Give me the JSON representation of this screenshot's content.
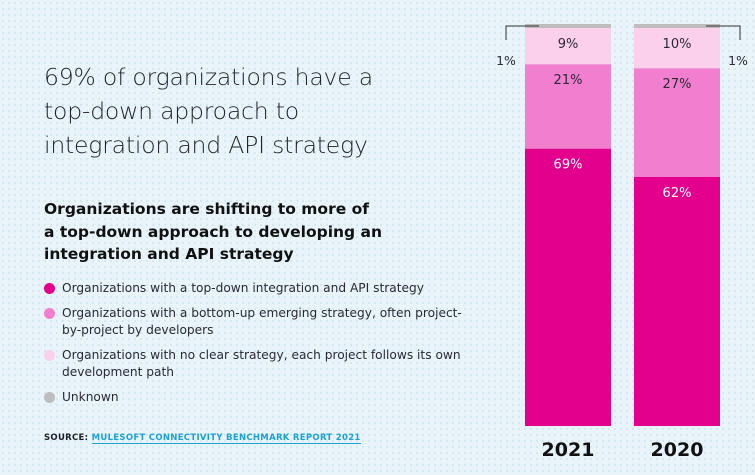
{
  "headline": "69% of organizations have a top-down approach to integration and API strategy",
  "subhead": "Organizations are shifting to more of a top-down approach to developing an integration and API strategy",
  "source": {
    "prefix": "SOURCE: ",
    "text": "MULESOFT CONNECTIVITY BENCHMARK REPORT 2021"
  },
  "colors": {
    "top_down": "#e3008c",
    "bottom_up": "#f27ecf",
    "no_strategy": "#fbd0ec",
    "unknown": "#bdbdbd"
  },
  "chart_data": {
    "type": "bar",
    "stacked": true,
    "categories": [
      "2021",
      "2020"
    ],
    "series": [
      {
        "name": "Organizations with a top-down integration and API strategy",
        "values": [
          69,
          62
        ],
        "labels": [
          "69%",
          "62%"
        ],
        "color_key": "top_down"
      },
      {
        "name": "Organizations with a bottom-up emerging strategy, often project-by-project by developers",
        "values": [
          21,
          27
        ],
        "labels": [
          "21%",
          "27%"
        ],
        "color_key": "bottom_up"
      },
      {
        "name": "Organizations with no clear strategy, each project follows its own development path",
        "values": [
          9,
          10
        ],
        "labels": [
          "9%",
          "10%"
        ],
        "color_key": "no_strategy"
      },
      {
        "name": "Unknown",
        "values": [
          1,
          1
        ],
        "labels": [
          "1%",
          "1%"
        ],
        "color_key": "unknown"
      }
    ],
    "ylim": [
      0,
      100
    ],
    "legend": "left"
  }
}
